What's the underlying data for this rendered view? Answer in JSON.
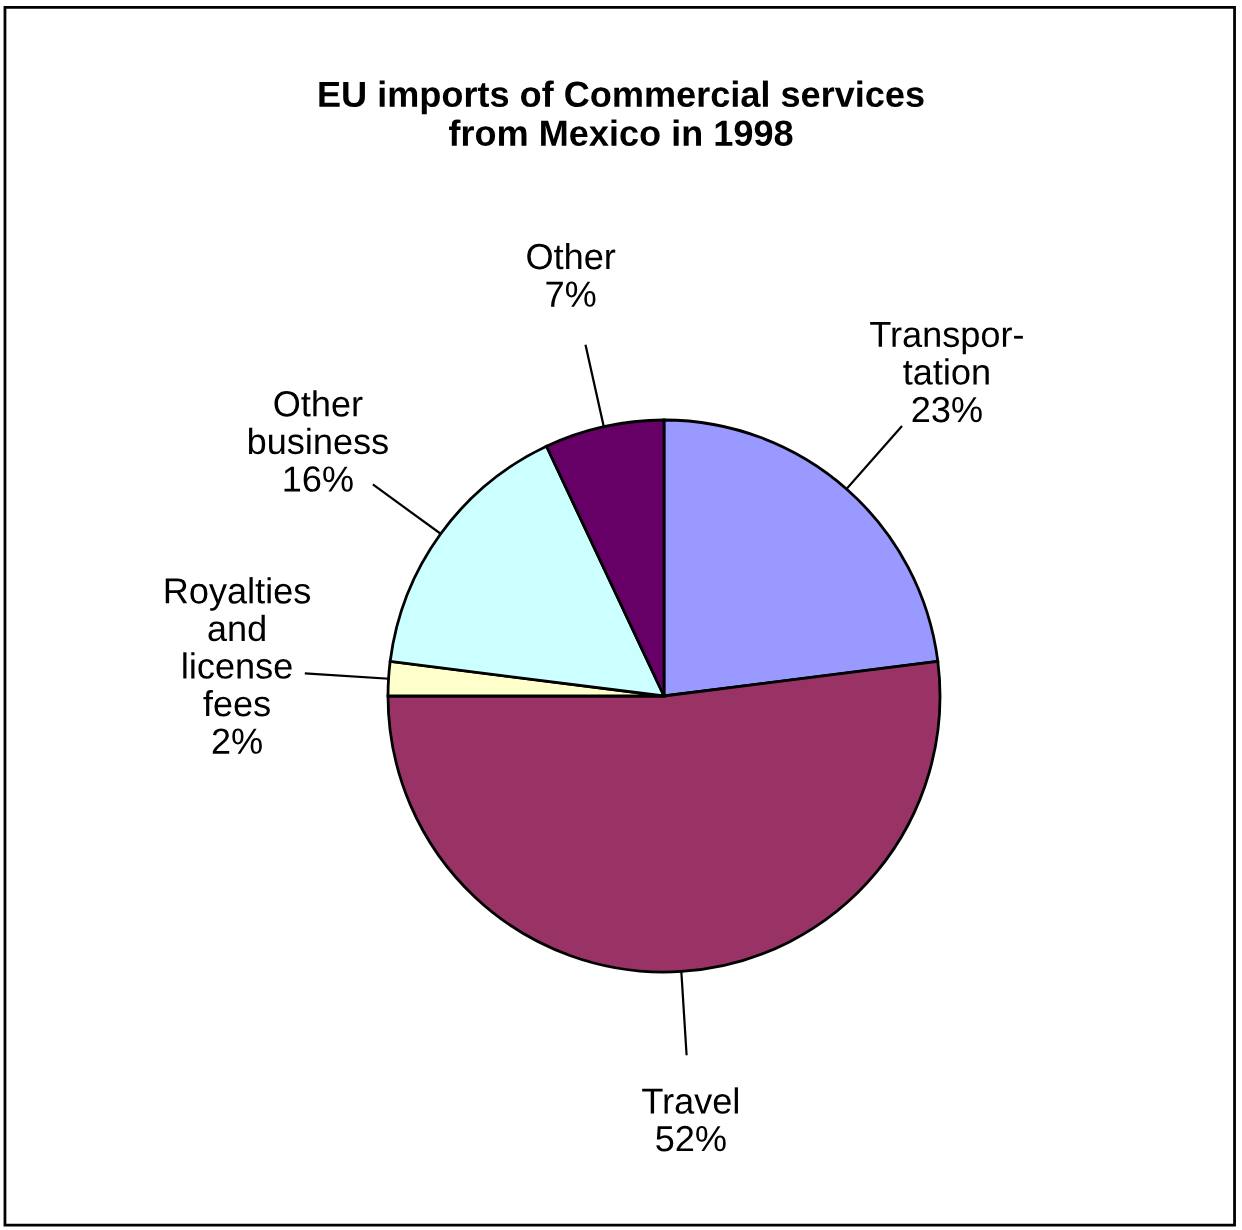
{
  "chart_data": {
    "type": "pie",
    "title": "EU imports of Commercial services\nfrom Mexico in 1998",
    "categories": [
      "Transpor-\ntation",
      "Travel",
      "Royalties\nand\nlicense\nfees",
      "Other\nbusiness",
      "Other"
    ],
    "values": [
      23,
      52,
      2,
      16,
      7
    ],
    "value_labels": [
      "23%",
      "52%",
      "2%",
      "16%",
      "7%"
    ],
    "colors": [
      "#9999ff",
      "#993366",
      "#ffffcc",
      "#ccffff",
      "#660066"
    ]
  }
}
